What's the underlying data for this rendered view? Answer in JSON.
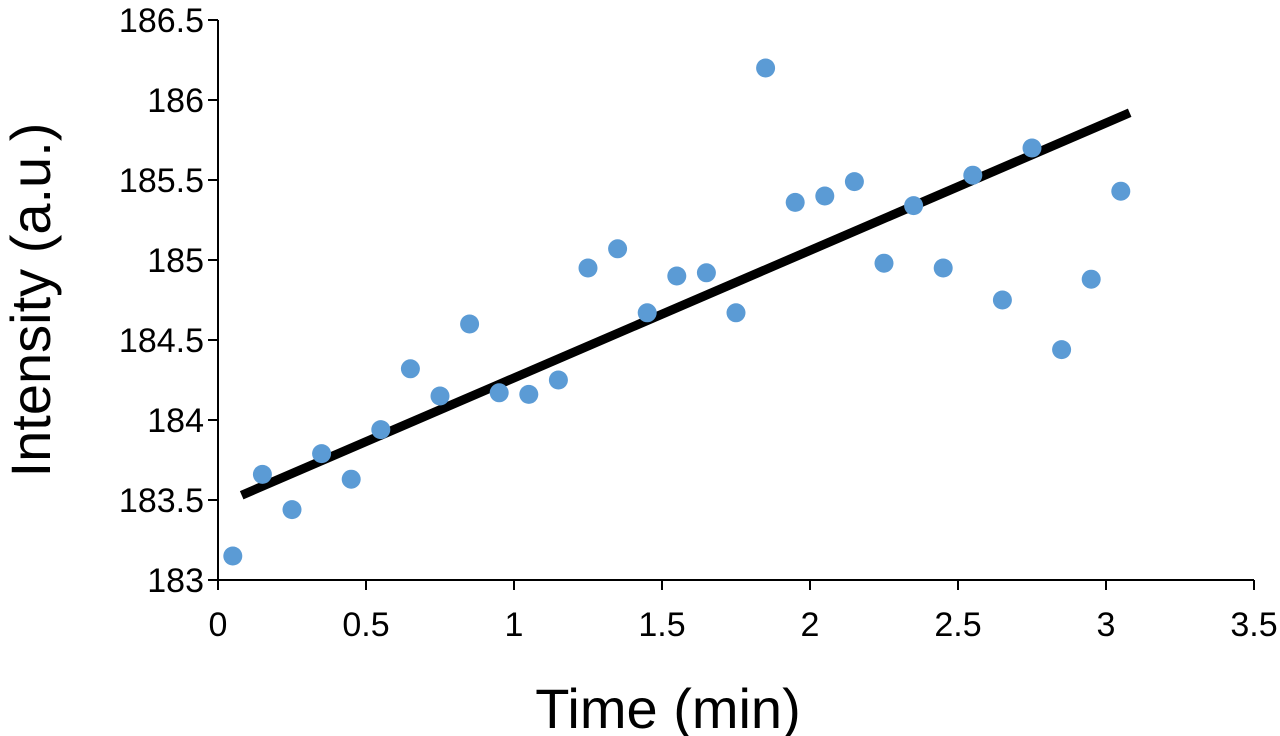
{
  "chart_data": {
    "type": "scatter",
    "title": "",
    "xlabel": "Time (min)",
    "ylabel": "Intensity (a.u.)",
    "xlim": [
      0,
      3.5
    ],
    "ylim": [
      183,
      186.5
    ],
    "xticks": [
      0,
      0.5,
      1,
      1.5,
      2,
      2.5,
      3,
      3.5
    ],
    "xtick_labels": [
      "0",
      "0.5",
      "1",
      "1.5",
      "2",
      "2.5",
      "3",
      "3.5"
    ],
    "yticks": [
      183,
      183.5,
      184,
      184.5,
      185,
      185.5,
      186,
      186.5
    ],
    "ytick_labels": [
      "183",
      "183.5",
      "184",
      "184.5",
      "185",
      "185.5",
      "186",
      "186.5"
    ],
    "grid": false,
    "legend": "none",
    "colors": {
      "points": "#5b9bd5",
      "trendline": "#000000",
      "axis": "#000000"
    },
    "series": [
      {
        "kind": "points",
        "x": [
          0.05,
          0.15,
          0.25,
          0.35,
          0.45,
          0.55,
          0.65,
          0.75,
          0.85,
          0.95,
          1.05,
          1.15,
          1.25,
          1.35,
          1.45,
          1.55,
          1.65,
          1.75,
          1.85,
          1.95,
          2.05,
          2.15,
          2.25,
          2.35,
          2.45,
          2.55,
          2.65,
          2.75,
          2.85,
          2.95,
          3.05
        ],
        "y": [
          183.15,
          183.66,
          183.44,
          183.79,
          183.63,
          183.94,
          184.32,
          184.15,
          184.6,
          184.17,
          184.16,
          184.25,
          184.95,
          185.07,
          184.67,
          184.9,
          184.92,
          184.67,
          186.2,
          185.36,
          185.4,
          185.49,
          184.98,
          185.34,
          184.95,
          185.53,
          184.75,
          185.7,
          184.44,
          184.88,
          185.43
        ]
      },
      {
        "kind": "trendline",
        "x": [
          0.08,
          3.08
        ],
        "y": [
          183.53,
          185.92
        ]
      }
    ]
  }
}
